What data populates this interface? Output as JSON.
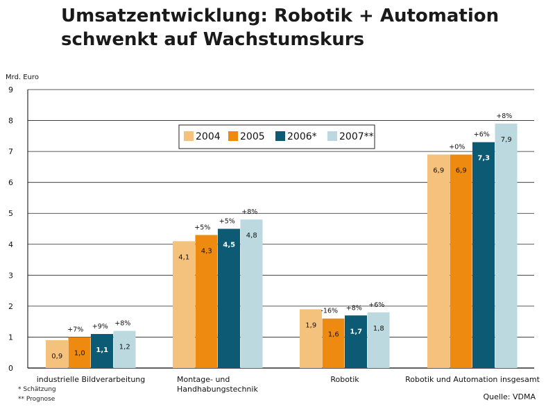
{
  "page": {
    "title_line1": "Umsatzentwicklung: Robotik + Automation",
    "title_line2": "schwenkt auf Wachstumskurs",
    "footnote1": "* Schätzung",
    "footnote2": "** Prognose",
    "source": "Quelle: VDMA"
  },
  "colors": {
    "2004": "#f5c27e",
    "2005": "#ee8a10",
    "2006*": "#0c5a73",
    "2007**": "#bcd9e0"
  },
  "chart_data": {
    "type": "bar",
    "ylabel": "Mrd. Euro",
    "ylim": [
      0,
      9
    ],
    "yticks": [
      0,
      1,
      2,
      3,
      4,
      5,
      6,
      7,
      8,
      9
    ],
    "grid": true,
    "legend": "top-center",
    "categories": [
      {
        "label": [
          "industrielle Bildverarbeitung"
        ]
      },
      {
        "label": [
          "Montage- und",
          "Handhabungstechnik"
        ]
      },
      {
        "label": [
          "Robotik"
        ]
      },
      {
        "label": [
          "Robotik und Automation insgesamt"
        ]
      }
    ],
    "series": [
      {
        "name": "2004",
        "values": [
          0.9,
          4.1,
          1.9,
          6.9
        ],
        "labels": [
          "0,9",
          "4,1",
          "1,9",
          "6,9"
        ],
        "growth": [
          "",
          "",
          "",
          ""
        ]
      },
      {
        "name": "2005",
        "values": [
          1.0,
          4.3,
          1.6,
          6.9
        ],
        "labels": [
          "1,0",
          "4,3",
          "1,6",
          "6,9"
        ],
        "growth": [
          "+7%",
          "+5%",
          "-16%",
          "+0%"
        ]
      },
      {
        "name": "2006*",
        "values": [
          1.1,
          4.5,
          1.7,
          7.3
        ],
        "labels": [
          "1,1",
          "4,5",
          "1,7",
          "7,3"
        ],
        "growth": [
          "+9%",
          "+5%",
          "+8%",
          "+6%"
        ]
      },
      {
        "name": "2007**",
        "values": [
          1.2,
          4.8,
          1.8,
          7.9
        ],
        "labels": [
          "1,2",
          "4,8",
          "1,8",
          "7,9"
        ],
        "growth": [
          "+8%",
          "+8%",
          "+6%",
          "+8%"
        ]
      }
    ]
  }
}
